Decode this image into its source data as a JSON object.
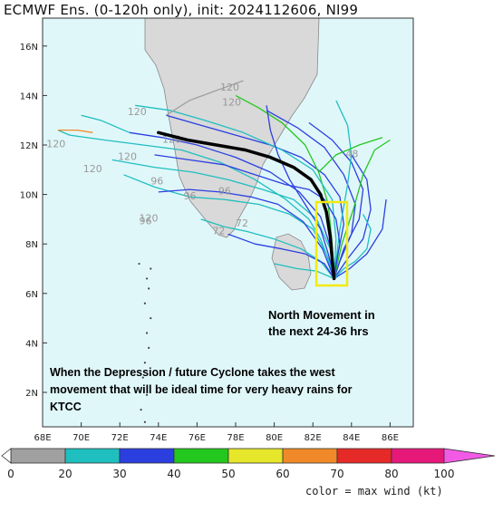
{
  "title": "ECMWF Ens. (0-120h only), init: 2024112606, NI99",
  "map": {
    "lon_range": [
      68,
      87
    ],
    "lat_range": [
      0.5,
      17
    ],
    "lon_ticks": [
      "68E",
      "70E",
      "72E",
      "74E",
      "76E",
      "78E",
      "80E",
      "82E",
      "84E",
      "86E"
    ],
    "lat_ticks": [
      "2N",
      "4N",
      "6N",
      "8N",
      "10N",
      "12N",
      "14N",
      "16N"
    ],
    "ocean_color": "#e0f7fa",
    "land_color": "#d9d9d9"
  },
  "annotations": {
    "north_line1": "North Movement in",
    "north_line2": "the next 24-36 hrs",
    "west_line1": "When the Depression / future Cyclone takes the west",
    "west_line2": "movement that will be ideal time for very heavy rains for",
    "west_line3": "KTCC"
  },
  "hour_labels": [
    {
      "text": "120",
      "lon": 68.2,
      "lat": 11.9
    },
    {
      "text": "120",
      "lon": 70.1,
      "lat": 10.9
    },
    {
      "text": "120",
      "lon": 71.9,
      "lat": 11.4
    },
    {
      "text": "120",
      "lon": 72.4,
      "lat": 13.2
    },
    {
      "text": "120",
      "lon": 77.2,
      "lat": 14.2
    },
    {
      "text": "120",
      "lon": 77.3,
      "lat": 13.6
    },
    {
      "text": "96",
      "lon": 73.6,
      "lat": 10.4
    },
    {
      "text": "96",
      "lon": 75.3,
      "lat": 9.8
    },
    {
      "text": "96",
      "lon": 77.1,
      "lat": 10.0
    },
    {
      "text": "96",
      "lon": 73.0,
      "lat": 8.8
    },
    {
      "text": "120",
      "lon": 73.0,
      "lat": 8.9
    },
    {
      "text": "72",
      "lon": 76.8,
      "lat": 8.4
    },
    {
      "text": "72",
      "lon": 78.0,
      "lat": 8.7
    },
    {
      "text": "48",
      "lon": 83.7,
      "lat": 11.5
    },
    {
      "text": "120",
      "lon": 74.2,
      "lat": 12.1
    }
  ],
  "colorbar": {
    "ticks": [
      "0",
      "20",
      "30",
      "40",
      "50",
      "60",
      "70",
      "80",
      "100"
    ],
    "colors": [
      "#a0a0a0",
      "#1fbfbf",
      "#2b3fe0",
      "#22c81e",
      "#e6e62a",
      "#f08a28",
      "#e62a28",
      "#e6187a",
      "#f25ae6"
    ],
    "caption": "color = max wind (kt)"
  },
  "mean_track": [
    [
      83.1,
      6.6
    ],
    [
      83.0,
      7.4
    ],
    [
      82.9,
      8.3
    ],
    [
      82.7,
      9.3
    ],
    [
      82.4,
      10.0
    ],
    [
      81.9,
      10.6
    ],
    [
      81.0,
      11.1
    ],
    [
      79.8,
      11.5
    ],
    [
      78.5,
      11.8
    ],
    [
      77.0,
      12.0
    ],
    [
      75.5,
      12.2
    ],
    [
      74.0,
      12.5
    ]
  ],
  "tracks": [
    {
      "c": "#2b3fe0",
      "p": [
        [
          83.1,
          6.6
        ],
        [
          83.3,
          7.6
        ],
        [
          83.6,
          8.8
        ],
        [
          83.4,
          9.9
        ],
        [
          82.6,
          10.8
        ],
        [
          81.4,
          11.5
        ],
        [
          79.8,
          12.0
        ],
        [
          78.0,
          12.4
        ],
        [
          76.2,
          12.8
        ],
        [
          74.4,
          13.2
        ]
      ]
    },
    {
      "c": "#1fbfbf",
      "p": [
        [
          83.1,
          6.6
        ],
        [
          82.9,
          7.8
        ],
        [
          82.2,
          9.0
        ],
        [
          81.0,
          9.8
        ],
        [
          79.4,
          10.2
        ],
        [
          77.6,
          10.6
        ],
        [
          75.8,
          10.9
        ],
        [
          73.8,
          11.1
        ],
        [
          71.6,
          11.4
        ]
      ]
    },
    {
      "c": "#2b3fe0",
      "p": [
        [
          83.1,
          6.6
        ],
        [
          83.4,
          7.3
        ],
        [
          84.0,
          8.4
        ],
        [
          84.2,
          9.6
        ],
        [
          83.6,
          10.8
        ],
        [
          82.6,
          11.9
        ],
        [
          81.2,
          12.7
        ],
        [
          79.6,
          13.4
        ]
      ]
    },
    {
      "c": "#1fbfbf",
      "p": [
        [
          83.1,
          6.6
        ],
        [
          82.7,
          7.6
        ],
        [
          82.0,
          8.6
        ],
        [
          80.8,
          9.2
        ],
        [
          79.2,
          9.6
        ],
        [
          77.4,
          9.8
        ],
        [
          75.6,
          9.9
        ],
        [
          73.8,
          10.3
        ],
        [
          72.2,
          10.8
        ]
      ]
    },
    {
      "c": "#22c81e",
      "p": [
        [
          83.1,
          6.6
        ],
        [
          83.0,
          8.0
        ],
        [
          82.8,
          9.6
        ],
        [
          82.3,
          10.9
        ],
        [
          81.6,
          12.0
        ],
        [
          80.4,
          12.9
        ],
        [
          79.2,
          13.5
        ],
        [
          78.0,
          14.0
        ]
      ]
    },
    {
      "c": "#2b3fe0",
      "p": [
        [
          83.1,
          6.6
        ],
        [
          83.6,
          7.8
        ],
        [
          84.4,
          9.0
        ],
        [
          84.6,
          10.2
        ],
        [
          84.0,
          11.3
        ],
        [
          83.0,
          12.2
        ],
        [
          81.8,
          12.9
        ]
      ]
    },
    {
      "c": "#1fbfbf",
      "p": [
        [
          83.1,
          6.6
        ],
        [
          82.4,
          7.3
        ],
        [
          81.4,
          7.8
        ],
        [
          80.0,
          8.2
        ],
        [
          78.6,
          8.5
        ],
        [
          77.4,
          8.7
        ],
        [
          76.2,
          9.0
        ]
      ]
    },
    {
      "c": "#2b3fe0",
      "p": [
        [
          83.1,
          6.6
        ],
        [
          82.6,
          7.2
        ],
        [
          81.6,
          7.6
        ],
        [
          80.4,
          7.8
        ],
        [
          79.0,
          8.0
        ],
        [
          77.6,
          8.4
        ]
      ]
    },
    {
      "c": "#1fbfbf",
      "p": [
        [
          83.1,
          6.6
        ],
        [
          83.2,
          8.2
        ],
        [
          83.0,
          9.8
        ],
        [
          82.0,
          11.0
        ],
        [
          80.4,
          11.8
        ],
        [
          78.4,
          12.5
        ],
        [
          76.4,
          13.0
        ],
        [
          74.6,
          13.4
        ],
        [
          72.8,
          13.6
        ]
      ]
    },
    {
      "c": "#2b3fe0",
      "p": [
        [
          83.1,
          6.6
        ],
        [
          83.8,
          7.4
        ],
        [
          84.6,
          8.2
        ],
        [
          85.0,
          9.4
        ],
        [
          84.8,
          10.6
        ],
        [
          84.0,
          11.6
        ]
      ]
    },
    {
      "c": "#1fbfbf",
      "p": [
        [
          83.1,
          6.6
        ],
        [
          82.8,
          7.4
        ],
        [
          82.4,
          8.2
        ],
        [
          81.8,
          9.0
        ],
        [
          80.6,
          9.8
        ],
        [
          79.0,
          10.6
        ],
        [
          77.2,
          11.3
        ],
        [
          75.2,
          11.8
        ],
        [
          73.2,
          12.0
        ],
        [
          71.2,
          12.2
        ],
        [
          69.4,
          12.4
        ],
        [
          68.8,
          12.6
        ]
      ]
    },
    {
      "c": "#2b3fe0",
      "p": [
        [
          83.1,
          6.6
        ],
        [
          82.9,
          7.9
        ],
        [
          82.4,
          9.1
        ],
        [
          81.3,
          10.1
        ],
        [
          79.8,
          10.9
        ],
        [
          78.0,
          11.5
        ],
        [
          76.0,
          12.0
        ],
        [
          74.2,
          12.3
        ],
        [
          72.5,
          12.5
        ]
      ]
    },
    {
      "c": "#22c81e",
      "p": [
        [
          83.1,
          6.6
        ],
        [
          83.5,
          8.0
        ],
        [
          84.1,
          9.4
        ],
        [
          84.6,
          10.8
        ],
        [
          85.2,
          11.8
        ],
        [
          86.0,
          12.2
        ]
      ]
    },
    {
      "c": "#1fbfbf",
      "p": [
        [
          83.1,
          6.6
        ],
        [
          83.4,
          8.6
        ],
        [
          83.8,
          10.4
        ],
        [
          84.0,
          11.6
        ],
        [
          83.8,
          12.8
        ],
        [
          83.2,
          13.8
        ]
      ]
    },
    {
      "c": "#2b3fe0",
      "p": [
        [
          83.1,
          6.6
        ],
        [
          82.5,
          7.8
        ],
        [
          81.5,
          8.9
        ],
        [
          80.2,
          9.6
        ],
        [
          78.8,
          9.9
        ],
        [
          77.2,
          10.1
        ],
        [
          75.6,
          10.2
        ],
        [
          74.0,
          10.1
        ]
      ]
    },
    {
      "c": "#a0a0a0",
      "p": [
        [
          74.4,
          13.2
        ],
        [
          75.6,
          13.8
        ],
        [
          77.0,
          14.2
        ],
        [
          78.4,
          14.6
        ]
      ]
    },
    {
      "c": "#1fbfbf",
      "p": [
        [
          72.5,
          12.5
        ],
        [
          71.0,
          13.0
        ],
        [
          70.0,
          13.2
        ]
      ]
    },
    {
      "c": "#2b3fe0",
      "p": [
        [
          83.1,
          6.6
        ],
        [
          83.9,
          7.0
        ],
        [
          84.8,
          7.6
        ],
        [
          85.6,
          8.6
        ],
        [
          85.8,
          9.8
        ]
      ]
    },
    {
      "c": "#1fbfbf",
      "p": [
        [
          83.1,
          6.6
        ],
        [
          82.2,
          6.9
        ],
        [
          81.2,
          7.0
        ],
        [
          80.0,
          7.2
        ]
      ]
    },
    {
      "c": "#f08a28",
      "p": [
        [
          68.8,
          12.6
        ],
        [
          69.8,
          12.6
        ],
        [
          70.6,
          12.5
        ]
      ]
    },
    {
      "c": "#22c81e",
      "p": [
        [
          82.3,
          10.9
        ],
        [
          83.2,
          11.6
        ],
        [
          84.4,
          12.0
        ],
        [
          85.6,
          12.3
        ]
      ]
    },
    {
      "c": "#2b3fe0",
      "p": [
        [
          83.1,
          6.6
        ],
        [
          83.0,
          7.0
        ],
        [
          82.8,
          7.6
        ],
        [
          82.4,
          8.6
        ],
        [
          81.6,
          9.6
        ],
        [
          80.8,
          10.6
        ],
        [
          80.2,
          11.6
        ],
        [
          79.8,
          12.6
        ],
        [
          79.6,
          13.6
        ]
      ]
    },
    {
      "c": "#1fbfbf",
      "p": [
        [
          83.1,
          6.6
        ],
        [
          83.6,
          7.0
        ],
        [
          84.2,
          7.3
        ],
        [
          84.8,
          7.8
        ],
        [
          85.0,
          8.6
        ],
        [
          84.6,
          9.2
        ]
      ]
    },
    {
      "c": "#2b3fe0",
      "p": [
        [
          83.1,
          6.6
        ],
        [
          83.2,
          7.2
        ],
        [
          83.4,
          8.0
        ],
        [
          83.2,
          9.0
        ],
        [
          82.6,
          9.8
        ],
        [
          81.8,
          10.2
        ],
        [
          80.6,
          10.4
        ],
        [
          79.0,
          10.8
        ],
        [
          77.4,
          11.2
        ],
        [
          75.6,
          11.4
        ],
        [
          73.8,
          11.6
        ]
      ]
    }
  ]
}
